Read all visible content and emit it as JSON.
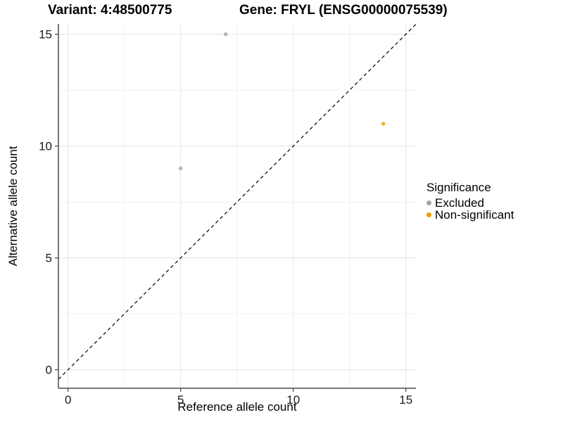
{
  "figure": {
    "title_left": "Variant: 4:48500775",
    "title_right": "Gene: FRYL (ENSG00000075539)"
  },
  "chart_data": {
    "type": "scatter",
    "title": "Variant: 4:48500775 / Gene: FRYL (ENSG00000075539)",
    "xlabel": "Reference allele count",
    "ylabel": "Alternative allele count",
    "xlim": [
      0,
      15
    ],
    "ylim": [
      0,
      15
    ],
    "xticks": [
      0,
      5,
      10,
      15
    ],
    "yticks": [
      0,
      5,
      10,
      15
    ],
    "xtick_labels": [
      "0",
      "5",
      "10",
      "15"
    ],
    "ytick_labels": [
      "0",
      "5",
      "10",
      "15"
    ],
    "minor_ticks": [
      2.5,
      7.5,
      12.5
    ],
    "grid": true,
    "reference_line": {
      "kind": "identity",
      "style": "dashed",
      "color": "#000000"
    },
    "series": [
      {
        "name": "Excluded",
        "color": "#A6A6A6",
        "points": [
          {
            "x": 7,
            "y": 15
          },
          {
            "x": 5,
            "y": 9
          }
        ]
      },
      {
        "name": "Non-significant",
        "color": "#F59B00",
        "points": [
          {
            "x": 14,
            "y": 11
          }
        ]
      }
    ],
    "legend": {
      "title": "Significance",
      "position": "right"
    },
    "style": {
      "major_grid_color": "#E4E4E4",
      "minor_grid_color": "#F2F2F2",
      "axis_color": "#4D4D4D",
      "text_color": "#1A1A1A",
      "point_opacity": 0.78
    }
  }
}
